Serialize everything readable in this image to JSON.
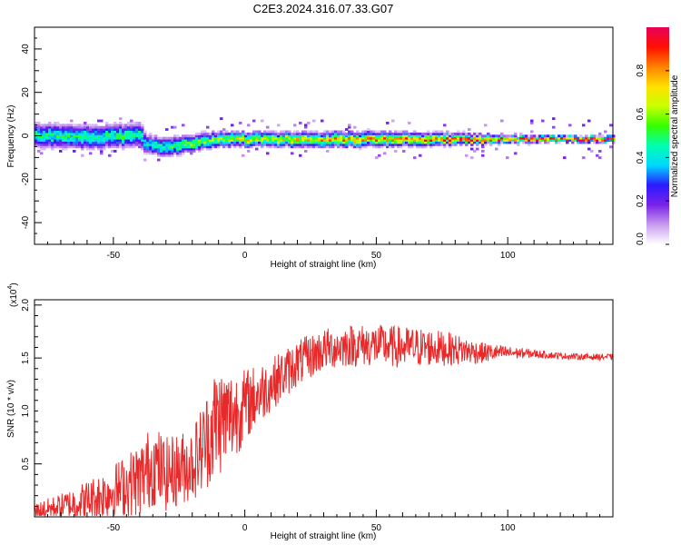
{
  "figure": {
    "title": "C2E3.2024.316.07.33.G07"
  },
  "chart_data": [
    {
      "type": "heatmap",
      "name": "spectrogram",
      "xlabel": "Height of straight line (km)",
      "ylabel": "Frequency (Hz)",
      "xlim": [
        -80,
        140
      ],
      "ylim": [
        -50,
        50
      ],
      "xticks": [
        -50,
        0,
        50,
        100
      ],
      "yticks": [
        40,
        20,
        0,
        -20,
        -40
      ],
      "grid": false,
      "colorbar": {
        "label": "Normalized spectral amplitude",
        "range": [
          0.0,
          1.0
        ],
        "ticks": [
          0.0,
          0.2,
          0.4,
          0.6,
          0.8
        ],
        "tick_labels": [
          "0.0",
          "0.2",
          "0.4",
          "0.6",
          "0.8"
        ],
        "colors": [
          "#ffffff",
          "#c89cf0",
          "#7a22e8",
          "#2a1aff",
          "#00d8ff",
          "#00ffb0",
          "#36ff00",
          "#c8ff00",
          "#ffe000",
          "#ff8000",
          "#ff1000",
          "#e8005a"
        ]
      },
      "ridge": {
        "description_points_x": [
          -80,
          -60,
          -40,
          -38,
          -30,
          -20,
          -10,
          0,
          25,
          50,
          75,
          100,
          140
        ],
        "frequency_hz": [
          0.5,
          -0.5,
          0.5,
          -4,
          -5,
          -3,
          -1.5,
          -1.5,
          -1.5,
          -1.5,
          -1.5,
          -1.5,
          -1.5
        ],
        "peak_amplitude": [
          0.45,
          0.45,
          0.45,
          0.4,
          0.45,
          0.55,
          0.6,
          0.65,
          0.7,
          0.75,
          0.8,
          0.9,
          0.95
        ],
        "spread_hz": [
          5,
          5,
          5,
          4,
          4,
          3.5,
          3,
          3,
          3,
          3,
          2.5,
          1.5,
          1.2
        ]
      }
    },
    {
      "type": "line",
      "name": "snr",
      "xlabel": "Height of straight line (km)",
      "ylabel": "SNR (10 * v/v)",
      "y_scale_label": "(x10",
      "y_scale_exponent": "4",
      "xlim": [
        -80,
        140
      ],
      "ylim": [
        0,
        2.05
      ],
      "xticks": [
        -50,
        0,
        50,
        100
      ],
      "yticks": [
        0.5,
        1.0,
        1.5,
        2.0
      ],
      "ytick_labels": [
        "0.5",
        "1.0",
        "1.5",
        "2.0"
      ],
      "grid": false,
      "color": "#e8292a",
      "series": [
        {
          "name": "SNR",
          "envelope_x": [
            -80,
            -70,
            -60,
            -50,
            -40,
            -35,
            -30,
            -20,
            -15,
            -11,
            -5,
            0,
            10,
            20,
            30,
            40,
            50,
            60,
            70,
            80,
            90,
            100,
            110,
            120,
            130,
            140
          ],
          "envelope_mean": [
            0.05,
            0.1,
            0.15,
            0.25,
            0.35,
            0.5,
            0.4,
            0.5,
            0.7,
            0.9,
            0.95,
            1.05,
            1.25,
            1.45,
            1.58,
            1.62,
            1.62,
            1.6,
            1.6,
            1.58,
            1.55,
            1.55,
            1.54,
            1.52,
            1.51,
            1.51
          ],
          "envelope_amp": [
            0.08,
            0.12,
            0.2,
            0.25,
            0.35,
            0.4,
            0.35,
            0.35,
            0.45,
            0.55,
            0.45,
            0.35,
            0.25,
            0.22,
            0.2,
            0.2,
            0.2,
            0.2,
            0.18,
            0.15,
            0.1,
            0.06,
            0.04,
            0.03,
            0.03,
            0.03
          ],
          "n_points": 1200
        }
      ]
    }
  ]
}
